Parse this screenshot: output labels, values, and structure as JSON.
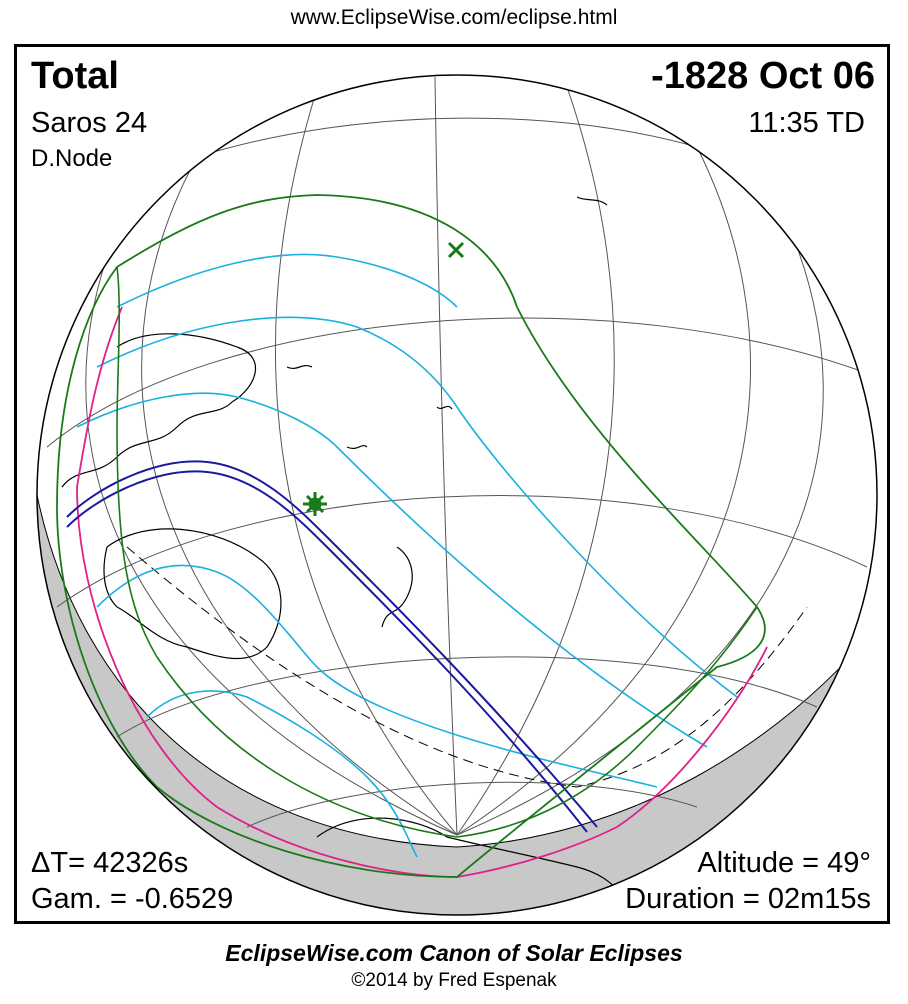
{
  "header": {
    "url": "www.EclipseWise.com/eclipse.html"
  },
  "eclipse": {
    "type": "Total",
    "date": "-1828 Oct 06",
    "saros": "Saros  24",
    "time": "11:35 TD",
    "node": "D.Node",
    "delta_t": "ΔT=  42326s",
    "gamma": "Gam. = -0.6529",
    "altitude": "Altitude = 49°",
    "duration": "Duration = 02m15s"
  },
  "footer": {
    "title": "EclipseWise.com Canon of Solar Eclipses",
    "copyright": "©2014 by Fred Espenak"
  },
  "colors": {
    "penumbral_limit": "#1a7a1a",
    "partial_contours": "#1ab0e0",
    "rise_set_curve": "#e0208a",
    "total_path": "#1a1aa0",
    "night_shade": "#c8c8c8",
    "greatest_eclipse_marker": "#1a7a1a"
  }
}
